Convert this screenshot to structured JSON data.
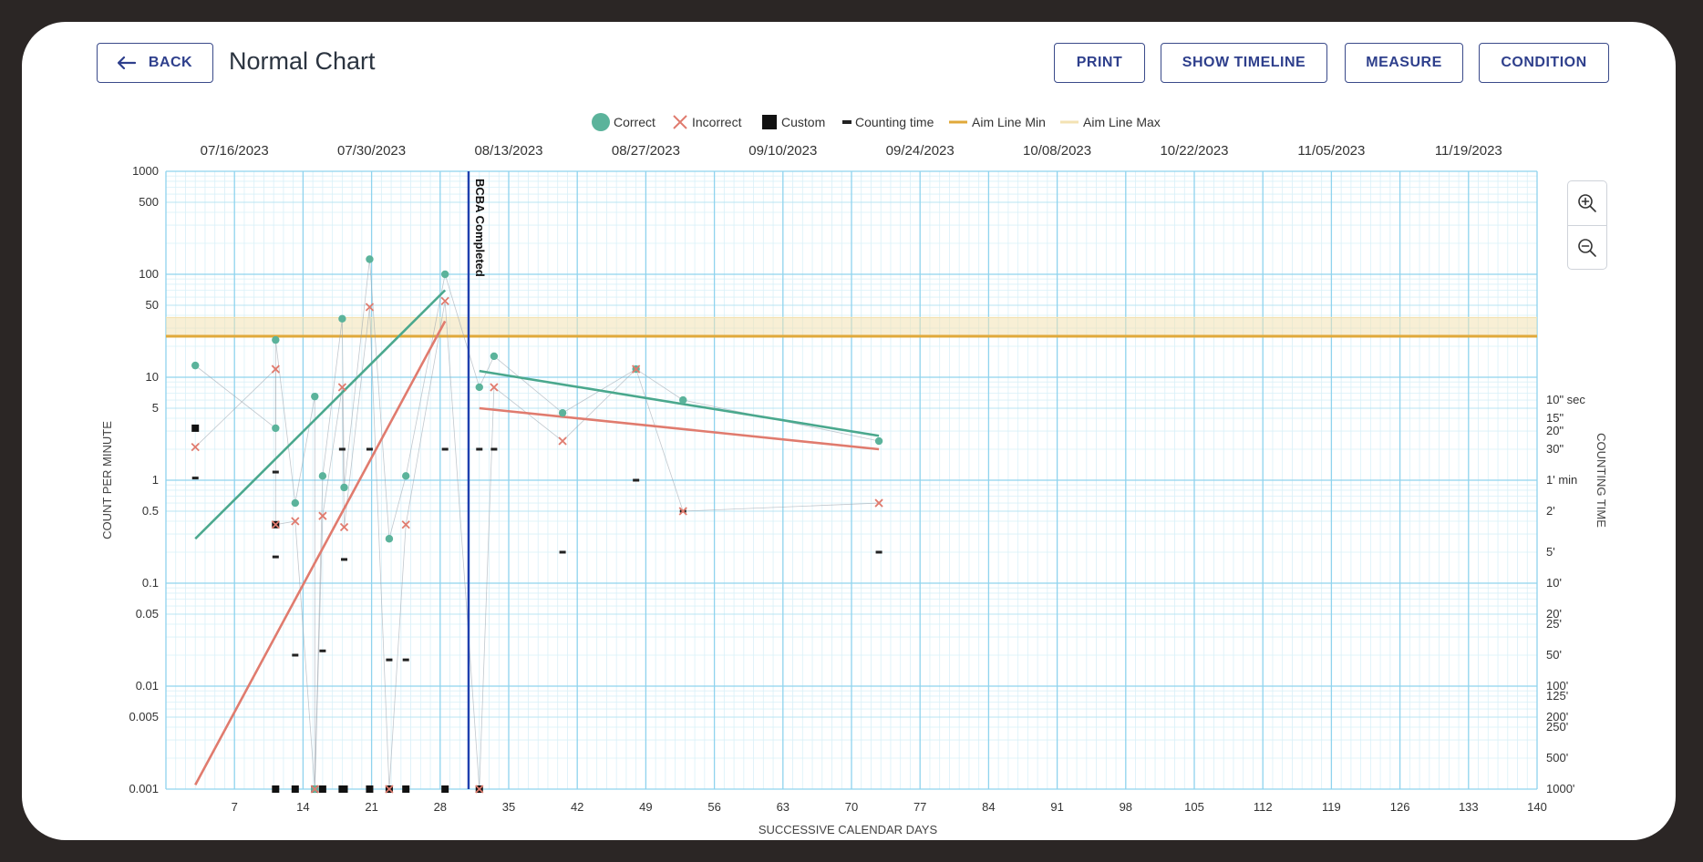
{
  "header": {
    "back_label": "BACK",
    "title": "Normal Chart",
    "buttons": [
      "PRINT",
      "SHOW TIMELINE",
      "MEASURE",
      "CONDITION"
    ]
  },
  "zoom": {
    "in_icon": "zoom-in-icon",
    "out_icon": "zoom-out-icon"
  },
  "legend": [
    {
      "label": "Correct",
      "marker": "circle",
      "color": "#5bb39b"
    },
    {
      "label": "Incorrect",
      "marker": "x",
      "color": "#e07b6e"
    },
    {
      "label": "Custom",
      "marker": "square",
      "color": "#111111"
    },
    {
      "label": "Counting time",
      "marker": "dash",
      "color": "#222222"
    },
    {
      "label": "Aim Line Min",
      "marker": "line",
      "color": "#e0a93a"
    },
    {
      "label": "Aim Line Max",
      "marker": "line",
      "color": "#f3e2b3"
    }
  ],
  "chart_data": {
    "type": "scatter",
    "xlabel": "SUCCESSIVE CALENDAR DAYS",
    "ylabel": "COUNT PER MINUTE",
    "y2label": "COUNTING TIME",
    "xlim": [
      0,
      140
    ],
    "ylim": [
      0.001,
      1000
    ],
    "yscale": "log",
    "x_ticks": [
      7,
      14,
      21,
      28,
      35,
      42,
      49,
      56,
      63,
      70,
      77,
      84,
      91,
      98,
      105,
      112,
      119,
      126,
      133,
      140
    ],
    "y_ticks": [
      {
        "v": 1000,
        "label": "1000"
      },
      {
        "v": 500,
        "label": "500"
      },
      {
        "v": 100,
        "label": "100"
      },
      {
        "v": 50,
        "label": "50"
      },
      {
        "v": 10,
        "label": "10"
      },
      {
        "v": 5,
        "label": "5"
      },
      {
        "v": 1,
        "label": "1"
      },
      {
        "v": 0.5,
        "label": "0.5"
      },
      {
        "v": 0.1,
        "label": "0.1"
      },
      {
        "v": 0.05,
        "label": "0.05"
      },
      {
        "v": 0.01,
        "label": "0.01"
      },
      {
        "v": 0.005,
        "label": "0.005"
      },
      {
        "v": 0.001,
        "label": "0.001"
      }
    ],
    "top_dates": [
      {
        "x": 7,
        "label": "07/16/2023"
      },
      {
        "x": 21,
        "label": "07/30/2023"
      },
      {
        "x": 35,
        "label": "08/13/2023"
      },
      {
        "x": 49,
        "label": "08/27/2023"
      },
      {
        "x": 63,
        "label": "09/10/2023"
      },
      {
        "x": 77,
        "label": "09/24/2023"
      },
      {
        "x": 91,
        "label": "10/08/2023"
      },
      {
        "x": 105,
        "label": "10/22/2023"
      },
      {
        "x": 119,
        "label": "11/05/2023"
      },
      {
        "x": 133,
        "label": "11/19/2023"
      }
    ],
    "counting_time_ticks": [
      {
        "v": 6,
        "label": "10\" sec"
      },
      {
        "v": 4,
        "label": "15\""
      },
      {
        "v": 3,
        "label": "20\""
      },
      {
        "v": 2,
        "label": "30\""
      },
      {
        "v": 1,
        "label": "1' min"
      },
      {
        "v": 0.5,
        "label": "2'"
      },
      {
        "v": 0.2,
        "label": "5'"
      },
      {
        "v": 0.1,
        "label": "10'"
      },
      {
        "v": 0.05,
        "label": "20'"
      },
      {
        "v": 0.04,
        "label": "25'"
      },
      {
        "v": 0.02,
        "label": "50'"
      },
      {
        "v": 0.01,
        "label": "100'"
      },
      {
        "v": 0.008,
        "label": "125'"
      },
      {
        "v": 0.005,
        "label": "200'"
      },
      {
        "v": 0.004,
        "label": "250'"
      },
      {
        "v": 0.002,
        "label": "500'"
      },
      {
        "v": 0.001,
        "label": "1000'"
      }
    ],
    "phase_line": {
      "x": 30.9,
      "label": "BCBA Completed",
      "color": "#1f3fae"
    },
    "aim_band": {
      "min": 25,
      "max": 38,
      "min_color": "#e0a93a",
      "max_color": "#f3e2b3"
    },
    "series": [
      {
        "name": "Correct",
        "color": "#5bb39b",
        "points": [
          [
            3,
            13
          ],
          [
            11.2,
            3.2
          ],
          [
            11.2,
            23
          ],
          [
            13.2,
            0.6
          ],
          [
            15.2,
            6.5
          ],
          [
            15.2,
            0.001
          ],
          [
            16,
            1.1
          ],
          [
            18,
            37
          ],
          [
            18.2,
            0.85
          ],
          [
            20.8,
            140
          ],
          [
            22.8,
            0.27
          ],
          [
            24.5,
            1.1
          ],
          [
            28.5,
            100
          ],
          [
            32,
            8
          ],
          [
            33.5,
            16
          ],
          [
            40.5,
            4.5
          ],
          [
            48,
            12
          ],
          [
            52.8,
            6
          ],
          [
            72.8,
            2.4
          ]
        ]
      },
      {
        "name": "Incorrect",
        "color": "#e07b6e",
        "points": [
          [
            3,
            2.1
          ],
          [
            11.2,
            12
          ],
          [
            11.2,
            0.37
          ],
          [
            13.2,
            0.4
          ],
          [
            15.2,
            0.001
          ],
          [
            16,
            0.45
          ],
          [
            18,
            8
          ],
          [
            18.2,
            0.35
          ],
          [
            20.8,
            48
          ],
          [
            22.8,
            0.001
          ],
          [
            24.5,
            0.37
          ],
          [
            28.5,
            55
          ],
          [
            32,
            0.001
          ],
          [
            33.5,
            8
          ],
          [
            40.5,
            2.4
          ],
          [
            48,
            12
          ],
          [
            52.8,
            0.5
          ],
          [
            72.8,
            0.6
          ]
        ]
      }
    ],
    "celeration_lines": [
      {
        "series": "Correct",
        "color": "#4aa88d",
        "from": [
          3,
          0.27
        ],
        "to": [
          28.5,
          70
        ]
      },
      {
        "series": "Incorrect",
        "color": "#e07b6e",
        "from": [
          3,
          0.0011
        ],
        "to": [
          28.5,
          35
        ]
      },
      {
        "series": "Correct",
        "color": "#4aa88d",
        "from": [
          32,
          11.5
        ],
        "to": [
          72.8,
          2.7
        ]
      },
      {
        "series": "Incorrect",
        "color": "#e07b6e",
        "from": [
          32,
          5
        ],
        "to": [
          72.8,
          2
        ]
      }
    ],
    "custom_points": [
      [
        3,
        3.2
      ],
      [
        11.2,
        0.37
      ],
      [
        11.2,
        0.001
      ],
      [
        13.2,
        0.001
      ],
      [
        15.2,
        0.001
      ],
      [
        16,
        0.001
      ],
      [
        18,
        0.001
      ],
      [
        18.2,
        0.001
      ],
      [
        20.8,
        0.001
      ],
      [
        22.8,
        0.001
      ],
      [
        24.5,
        0.001
      ],
      [
        28.5,
        0.001
      ],
      [
        32,
        0.001
      ]
    ],
    "counting_time_points": [
      [
        3,
        1.05
      ],
      [
        11.2,
        1.2
      ],
      [
        11.2,
        0.18
      ],
      [
        13.2,
        0.02
      ],
      [
        16,
        0.022
      ],
      [
        18,
        2
      ],
      [
        18.2,
        0.17
      ],
      [
        20.8,
        2
      ],
      [
        22.8,
        0.018
      ],
      [
        24.5,
        0.018
      ],
      [
        28.5,
        2
      ],
      [
        32,
        2
      ],
      [
        33.5,
        2
      ],
      [
        40.5,
        0.2
      ],
      [
        48,
        1
      ],
      [
        52.8,
        0.5
      ],
      [
        72.8,
        0.2
      ]
    ]
  }
}
